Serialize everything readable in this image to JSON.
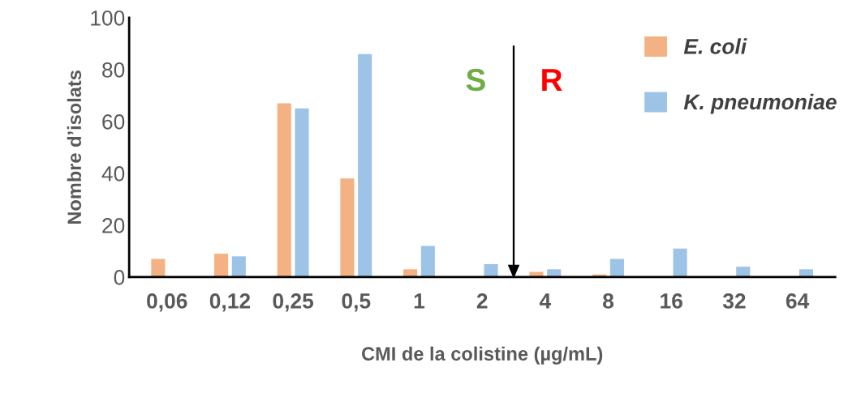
{
  "chart_data": {
    "type": "bar",
    "xlabel": "CMI de la colistine (µg/mL)",
    "ylabel": "Nombre d’isolats",
    "categories": [
      "0,06",
      "0,12",
      "0,25",
      "0,5",
      "1",
      "2",
      "4",
      "8",
      "16",
      "32",
      "64"
    ],
    "series": [
      {
        "name": "E. coli",
        "color": "#f4b183",
        "values": [
          7,
          9,
          67,
          38,
          3,
          0,
          2,
          1,
          0,
          0,
          0
        ]
      },
      {
        "name": "K. pneumoniae",
        "color": "#9dc3e6",
        "values": [
          0,
          8,
          65,
          86,
          12,
          5,
          3,
          7,
          11,
          4,
          3
        ]
      }
    ],
    "ylim": [
      0,
      100
    ],
    "yticks": [
      0,
      20,
      40,
      60,
      80,
      100
    ],
    "annotations": [
      "S",
      "R"
    ],
    "grid": false,
    "legend": "top right"
  }
}
